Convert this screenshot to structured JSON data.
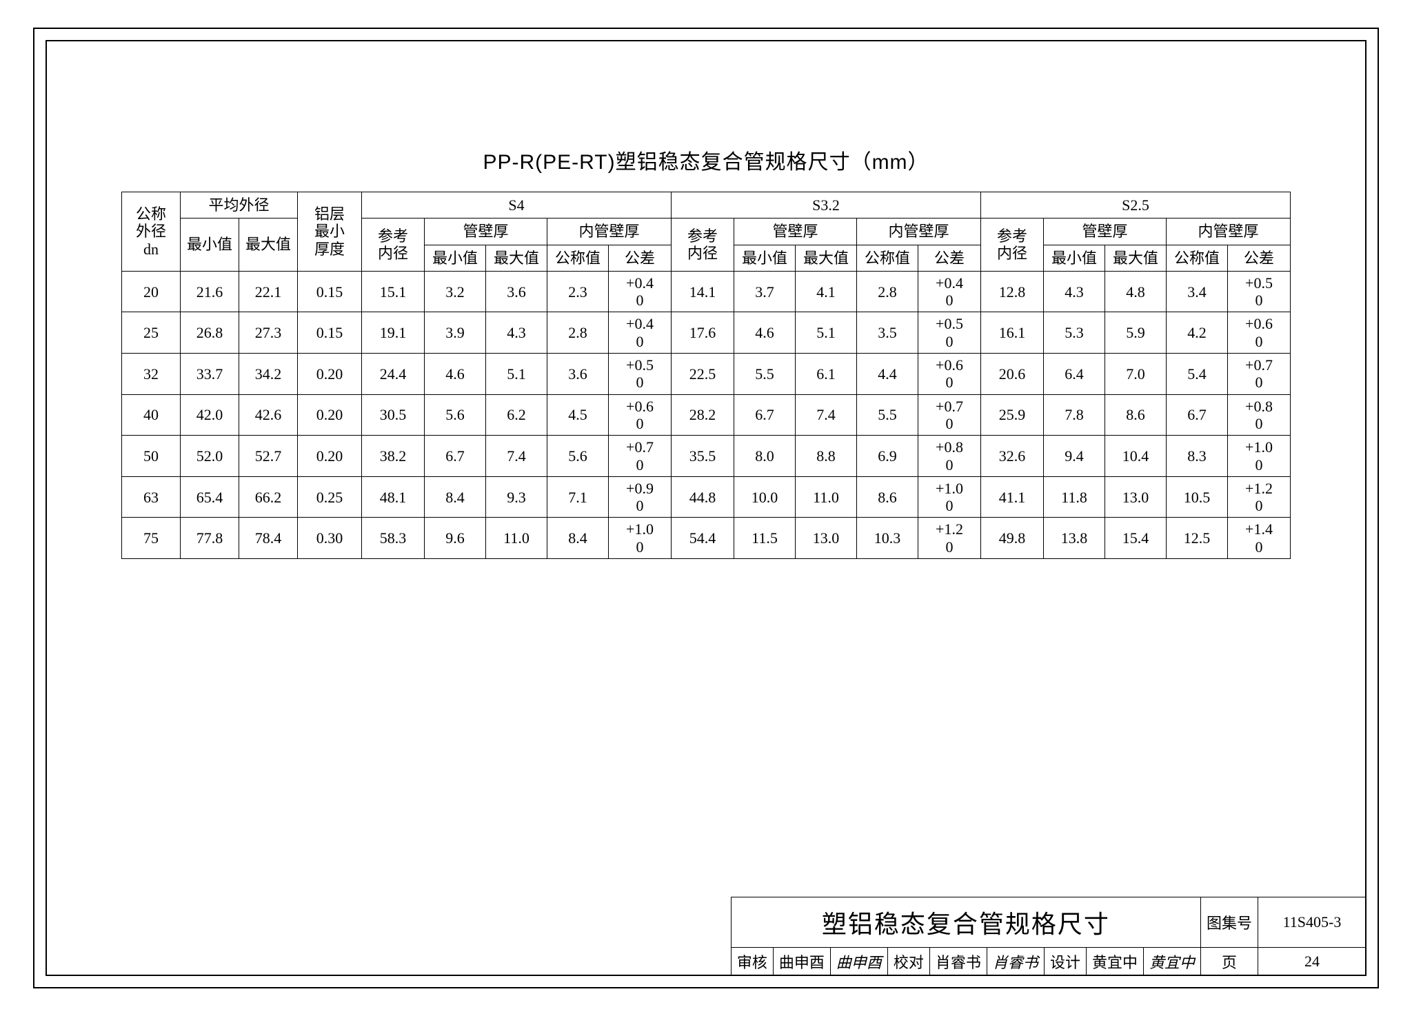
{
  "title": "PP-R(PE-RT)塑铝稳态复合管规格尺寸（mm）",
  "headers": {
    "dn": "公称\n外径\ndn",
    "avg_od": "平均外径",
    "avg_min": "最小值",
    "avg_max": "最大值",
    "al_layer": "铝层\n最小\n厚度",
    "s4": "S4",
    "s32": "S3.2",
    "s25": "S2.5",
    "ref_id": "参考\n内径",
    "wall": "管壁厚",
    "inner_wall": "内管壁厚",
    "min": "最小值",
    "max": "最大值",
    "nom": "公称值",
    "tol": "公差"
  },
  "rows": [
    {
      "dn": "20",
      "od_min": "21.6",
      "od_max": "22.1",
      "al": "0.15",
      "s4": {
        "ref": "15.1",
        "wmin": "3.2",
        "wmax": "3.6",
        "inom": "2.3",
        "tol_p": "+0.4",
        "tol_z": "0"
      },
      "s32": {
        "ref": "14.1",
        "wmin": "3.7",
        "wmax": "4.1",
        "inom": "2.8",
        "tol_p": "+0.4",
        "tol_z": "0"
      },
      "s25": {
        "ref": "12.8",
        "wmin": "4.3",
        "wmax": "4.8",
        "inom": "3.4",
        "tol_p": "+0.5",
        "tol_z": "0"
      }
    },
    {
      "dn": "25",
      "od_min": "26.8",
      "od_max": "27.3",
      "al": "0.15",
      "s4": {
        "ref": "19.1",
        "wmin": "3.9",
        "wmax": "4.3",
        "inom": "2.8",
        "tol_p": "+0.4",
        "tol_z": "0"
      },
      "s32": {
        "ref": "17.6",
        "wmin": "4.6",
        "wmax": "5.1",
        "inom": "3.5",
        "tol_p": "+0.5",
        "tol_z": "0"
      },
      "s25": {
        "ref": "16.1",
        "wmin": "5.3",
        "wmax": "5.9",
        "inom": "4.2",
        "tol_p": "+0.6",
        "tol_z": "0"
      }
    },
    {
      "dn": "32",
      "od_min": "33.7",
      "od_max": "34.2",
      "al": "0.20",
      "s4": {
        "ref": "24.4",
        "wmin": "4.6",
        "wmax": "5.1",
        "inom": "3.6",
        "tol_p": "+0.5",
        "tol_z": "0"
      },
      "s32": {
        "ref": "22.5",
        "wmin": "5.5",
        "wmax": "6.1",
        "inom": "4.4",
        "tol_p": "+0.6",
        "tol_z": "0"
      },
      "s25": {
        "ref": "20.6",
        "wmin": "6.4",
        "wmax": "7.0",
        "inom": "5.4",
        "tol_p": "+0.7",
        "tol_z": "0"
      }
    },
    {
      "dn": "40",
      "od_min": "42.0",
      "od_max": "42.6",
      "al": "0.20",
      "s4": {
        "ref": "30.5",
        "wmin": "5.6",
        "wmax": "6.2",
        "inom": "4.5",
        "tol_p": "+0.6",
        "tol_z": "0"
      },
      "s32": {
        "ref": "28.2",
        "wmin": "6.7",
        "wmax": "7.4",
        "inom": "5.5",
        "tol_p": "+0.7",
        "tol_z": "0"
      },
      "s25": {
        "ref": "25.9",
        "wmin": "7.8",
        "wmax": "8.6",
        "inom": "6.7",
        "tol_p": "+0.8",
        "tol_z": "0"
      }
    },
    {
      "dn": "50",
      "od_min": "52.0",
      "od_max": "52.7",
      "al": "0.20",
      "s4": {
        "ref": "38.2",
        "wmin": "6.7",
        "wmax": "7.4",
        "inom": "5.6",
        "tol_p": "+0.7",
        "tol_z": "0"
      },
      "s32": {
        "ref": "35.5",
        "wmin": "8.0",
        "wmax": "8.8",
        "inom": "6.9",
        "tol_p": "+0.8",
        "tol_z": "0"
      },
      "s25": {
        "ref": "32.6",
        "wmin": "9.4",
        "wmax": "10.4",
        "inom": "8.3",
        "tol_p": "+1.0",
        "tol_z": "0"
      }
    },
    {
      "dn": "63",
      "od_min": "65.4",
      "od_max": "66.2",
      "al": "0.25",
      "s4": {
        "ref": "48.1",
        "wmin": "8.4",
        "wmax": "9.3",
        "inom": "7.1",
        "tol_p": "+0.9",
        "tol_z": "0"
      },
      "s32": {
        "ref": "44.8",
        "wmin": "10.0",
        "wmax": "11.0",
        "inom": "8.6",
        "tol_p": "+1.0",
        "tol_z": "0"
      },
      "s25": {
        "ref": "41.1",
        "wmin": "11.8",
        "wmax": "13.0",
        "inom": "10.5",
        "tol_p": "+1.2",
        "tol_z": "0"
      }
    },
    {
      "dn": "75",
      "od_min": "77.8",
      "od_max": "78.4",
      "al": "0.30",
      "s4": {
        "ref": "58.3",
        "wmin": "9.6",
        "wmax": "11.0",
        "inom": "8.4",
        "tol_p": "+1.0",
        "tol_z": "0"
      },
      "s32": {
        "ref": "54.4",
        "wmin": "11.5",
        "wmax": "13.0",
        "inom": "10.3",
        "tol_p": "+1.2",
        "tol_z": "0"
      },
      "s25": {
        "ref": "49.8",
        "wmin": "13.8",
        "wmax": "15.4",
        "inom": "12.5",
        "tol_p": "+1.4",
        "tol_z": "0"
      }
    }
  ],
  "titleblock": {
    "big": "塑铝稳态复合管规格尺寸",
    "atlas_label": "图集号",
    "atlas_no": "11S405-3",
    "page_label": "页",
    "page_no": "24",
    "review": "审核",
    "review_name": "曲申酉",
    "review_sig": "曲申酉",
    "check": "校对",
    "check_name": "肖睿书",
    "check_sig": "肖睿书",
    "design": "设计",
    "design_name": "黄宜中",
    "design_sig": "黄宜中"
  },
  "style": {
    "font_body_pt": 22,
    "font_title_pt": 30,
    "border_color": "#000000",
    "background": "#ffffff"
  }
}
